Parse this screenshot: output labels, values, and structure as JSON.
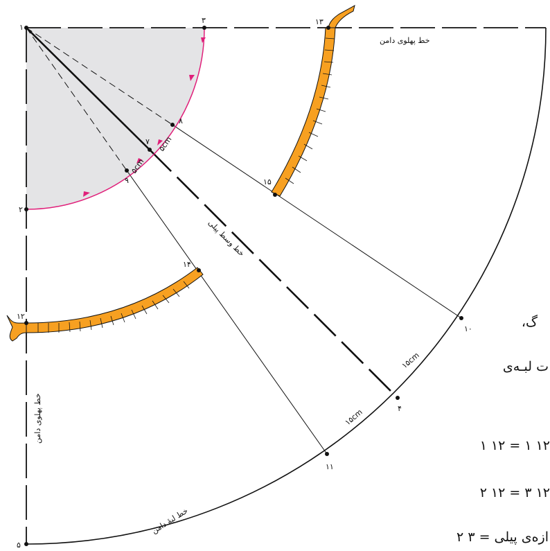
{
  "labels": {
    "side_line_top": "خط پهلوی دامن",
    "side_line_left": "خط پهلوی دامن",
    "hem_line": "خط لبهٔ دامن",
    "diagonal_label": "خط وسط پیلی",
    "cm_5_a": "۵cm",
    "cm_5_b": "۵cm",
    "cm_15_a": "۱۵cm",
    "cm_15_b": "۱۵cm"
  },
  "points": {
    "p1": "۱",
    "p2": "۲",
    "p3": "۳",
    "p4": "۴",
    "p5": "۵",
    "p7": "۷",
    "p8": "۸",
    "p9": "۹",
    "p10": "۱۰",
    "p11": "۱۱",
    "p12": "۱۲",
    "p13": "۱۳",
    "p14": "۱۴",
    "p15": "۱۵"
  },
  "text_lines": {
    "line1": "گ،",
    "line2": "ت لبـه‌ی",
    "line3": "۱ ۱۲ = ۱ ۱۲",
    "line4": "۲ ۱۲ = ۳ ۱۲",
    "line5": "ازه‌ی پیلی = ۳ ۲"
  },
  "colors": {
    "waist_fill": "#e4e4e6",
    "arc_magenta": "#e0207a",
    "band_orange": "#f7a021",
    "line": "#111111"
  }
}
